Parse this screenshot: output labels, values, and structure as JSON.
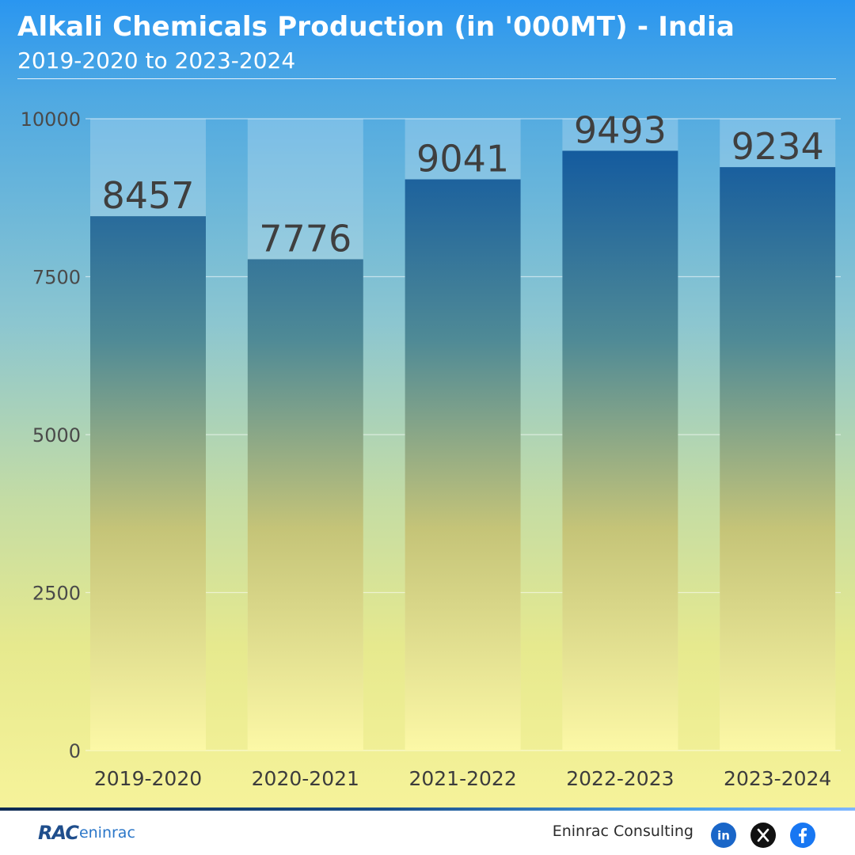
{
  "header": {
    "title": "Alkali Chemicals Production (in '000MT) - India",
    "subtitle": "2019-2020 to 2023-2024"
  },
  "chart_data": {
    "type": "bar",
    "categories": [
      "2019-2020",
      "2020-2021",
      "2021-2022",
      "2022-2023",
      "2023-2024"
    ],
    "values": [
      8457,
      7776,
      9041,
      9493,
      9234
    ],
    "ylim": [
      0,
      10000
    ],
    "yticks": [
      0,
      2500,
      5000,
      7500,
      10000
    ],
    "grid": true,
    "data_labels": true,
    "colors": {
      "bar_top": "#0a53a0",
      "bar_bottom": "#fcf8a6",
      "label": "#3f3f3f",
      "header_bg": "#2a96f0"
    }
  },
  "footer": {
    "logo_mark": "RAC",
    "logo_word": "eninrac",
    "company": "Eninrac Consulting",
    "social_icons": [
      "linkedin-icon",
      "x-icon",
      "facebook-icon"
    ]
  }
}
